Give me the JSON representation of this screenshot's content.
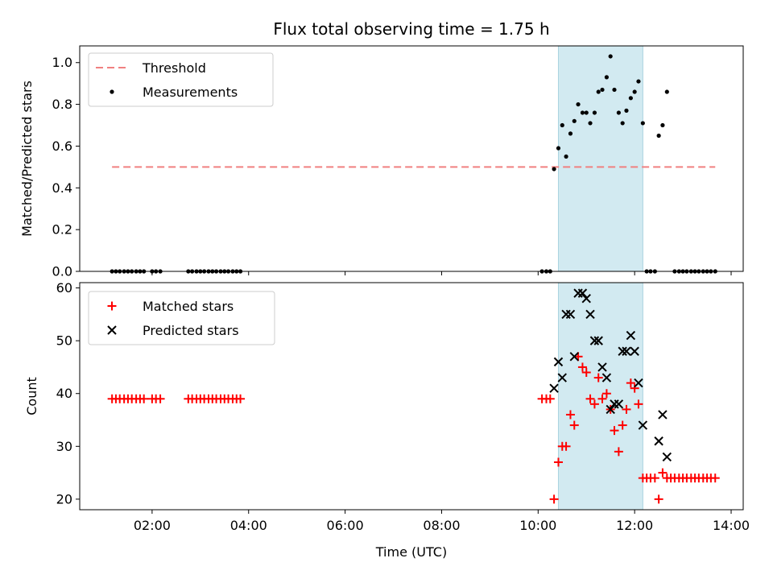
{
  "chart_data": {
    "title": "Flux total observing time = 1.75 h",
    "xlabel": "Time (UTC)",
    "x_unit": "hours UTC",
    "xlim": [
      0.5,
      14.25
    ],
    "xticks": [
      {
        "value": 2,
        "label": "02:00"
      },
      {
        "value": 4,
        "label": "04:00"
      },
      {
        "value": 6,
        "label": "06:00"
      },
      {
        "value": 8,
        "label": "08:00"
      },
      {
        "value": 10,
        "label": "10:00"
      },
      {
        "value": 12,
        "label": "12:00"
      },
      {
        "value": 14,
        "label": "14:00"
      }
    ],
    "highlight_span": {
      "x0": 10.42,
      "x1": 12.17,
      "color": "#add8e6"
    },
    "panels": [
      {
        "type": "scatter",
        "ylabel": "Matched/Predicted stars",
        "ylim": [
          0,
          1.08
        ],
        "yticks": [
          {
            "value": 0.0,
            "label": "0.0"
          },
          {
            "value": 0.2,
            "label": "0.2"
          },
          {
            "value": 0.4,
            "label": "0.4"
          },
          {
            "value": 0.6,
            "label": "0.6"
          },
          {
            "value": 0.8,
            "label": "0.8"
          },
          {
            "value": 1.0,
            "label": "1.0"
          }
        ],
        "threshold": {
          "name": "Threshold",
          "value": 0.5,
          "x0": 1.17,
          "x1": 13.67,
          "color": "#f08080"
        },
        "series": [
          {
            "name": "Measurements",
            "marker": "dot",
            "color": "#000000",
            "points": [
              [
                1.17,
                0
              ],
              [
                1.25,
                0
              ],
              [
                1.33,
                0
              ],
              [
                1.42,
                0
              ],
              [
                1.5,
                0
              ],
              [
                1.58,
                0
              ],
              [
                1.67,
                0
              ],
              [
                1.75,
                0
              ],
              [
                1.83,
                0
              ],
              [
                2.0,
                0
              ],
              [
                2.08,
                0
              ],
              [
                2.17,
                0
              ],
              [
                2.75,
                0
              ],
              [
                2.83,
                0
              ],
              [
                2.92,
                0
              ],
              [
                3.0,
                0
              ],
              [
                3.08,
                0
              ],
              [
                3.17,
                0
              ],
              [
                3.25,
                0
              ],
              [
                3.33,
                0
              ],
              [
                3.42,
                0
              ],
              [
                3.5,
                0
              ],
              [
                3.58,
                0
              ],
              [
                3.67,
                0
              ],
              [
                3.75,
                0
              ],
              [
                3.83,
                0
              ],
              [
                10.08,
                0
              ],
              [
                10.17,
                0
              ],
              [
                10.25,
                0
              ],
              [
                10.33,
                0.49
              ],
              [
                10.42,
                0.59
              ],
              [
                10.5,
                0.7
              ],
              [
                10.58,
                0.55
              ],
              [
                10.67,
                0.66
              ],
              [
                10.75,
                0.72
              ],
              [
                10.83,
                0.8
              ],
              [
                10.92,
                0.76
              ],
              [
                11.0,
                0.76
              ],
              [
                11.08,
                0.71
              ],
              [
                11.17,
                0.76
              ],
              [
                11.25,
                0.86
              ],
              [
                11.33,
                0.87
              ],
              [
                11.42,
                0.93
              ],
              [
                11.5,
                1.03
              ],
              [
                11.58,
                0.87
              ],
              [
                11.67,
                0.76
              ],
              [
                11.75,
                0.71
              ],
              [
                11.83,
                0.77
              ],
              [
                11.92,
                0.83
              ],
              [
                12.0,
                0.86
              ],
              [
                12.08,
                0.91
              ],
              [
                12.17,
                0.71
              ],
              [
                12.25,
                0
              ],
              [
                12.33,
                0
              ],
              [
                12.42,
                0
              ],
              [
                12.5,
                0.65
              ],
              [
                12.58,
                0.7
              ],
              [
                12.67,
                0.86
              ],
              [
                12.83,
                0
              ],
              [
                12.92,
                0
              ],
              [
                13.0,
                0
              ],
              [
                13.08,
                0
              ],
              [
                13.17,
                0
              ],
              [
                13.25,
                0
              ],
              [
                13.33,
                0
              ],
              [
                13.42,
                0
              ],
              [
                13.5,
                0
              ],
              [
                13.58,
                0
              ],
              [
                13.67,
                0
              ]
            ]
          }
        ],
        "legend": {
          "position": "upper-left",
          "entries": [
            "Threshold",
            "Measurements"
          ]
        }
      },
      {
        "type": "scatter",
        "ylabel": "Count",
        "ylim": [
          18,
          61
        ],
        "yticks": [
          {
            "value": 20,
            "label": "20"
          },
          {
            "value": 30,
            "label": "30"
          },
          {
            "value": 40,
            "label": "40"
          },
          {
            "value": 50,
            "label": "50"
          },
          {
            "value": 60,
            "label": "60"
          }
        ],
        "series": [
          {
            "name": "Matched stars",
            "marker": "plus",
            "color": "#ff0000",
            "points": [
              [
                1.17,
                39
              ],
              [
                1.25,
                39
              ],
              [
                1.33,
                39
              ],
              [
                1.42,
                39
              ],
              [
                1.5,
                39
              ],
              [
                1.58,
                39
              ],
              [
                1.67,
                39
              ],
              [
                1.75,
                39
              ],
              [
                1.83,
                39
              ],
              [
                2.0,
                39
              ],
              [
                2.08,
                39
              ],
              [
                2.17,
                39
              ],
              [
                2.75,
                39
              ],
              [
                2.83,
                39
              ],
              [
                2.92,
                39
              ],
              [
                3.0,
                39
              ],
              [
                3.08,
                39
              ],
              [
                3.17,
                39
              ],
              [
                3.25,
                39
              ],
              [
                3.33,
                39
              ],
              [
                3.42,
                39
              ],
              [
                3.5,
                39
              ],
              [
                3.58,
                39
              ],
              [
                3.67,
                39
              ],
              [
                3.75,
                39
              ],
              [
                3.83,
                39
              ],
              [
                10.08,
                39
              ],
              [
                10.17,
                39
              ],
              [
                10.25,
                39
              ],
              [
                10.33,
                20
              ],
              [
                10.42,
                27
              ],
              [
                10.5,
                30
              ],
              [
                10.58,
                30
              ],
              [
                10.67,
                36
              ],
              [
                10.75,
                34
              ],
              [
                10.83,
                47
              ],
              [
                10.92,
                45
              ],
              [
                11.0,
                44
              ],
              [
                11.08,
                39
              ],
              [
                11.17,
                38
              ],
              [
                11.25,
                43
              ],
              [
                11.33,
                39
              ],
              [
                11.42,
                40
              ],
              [
                11.5,
                37
              ],
              [
                11.58,
                33
              ],
              [
                11.67,
                29
              ],
              [
                11.75,
                34
              ],
              [
                11.83,
                37
              ],
              [
                11.92,
                42
              ],
              [
                12.0,
                41
              ],
              [
                12.08,
                38
              ],
              [
                12.17,
                24
              ],
              [
                12.25,
                24
              ],
              [
                12.33,
                24
              ],
              [
                12.42,
                24
              ],
              [
                12.5,
                20
              ],
              [
                12.58,
                25
              ],
              [
                12.67,
                24
              ],
              [
                12.75,
                24
              ],
              [
                12.83,
                24
              ],
              [
                12.92,
                24
              ],
              [
                13.0,
                24
              ],
              [
                13.08,
                24
              ],
              [
                13.17,
                24
              ],
              [
                13.25,
                24
              ],
              [
                13.33,
                24
              ],
              [
                13.42,
                24
              ],
              [
                13.5,
                24
              ],
              [
                13.58,
                24
              ],
              [
                13.67,
                24
              ]
            ]
          },
          {
            "name": "Predicted stars",
            "marker": "x",
            "color": "#000000",
            "points": [
              [
                10.33,
                41
              ],
              [
                10.42,
                46
              ],
              [
                10.5,
                43
              ],
              [
                10.58,
                55
              ],
              [
                10.67,
                55
              ],
              [
                10.75,
                47
              ],
              [
                10.83,
                59
              ],
              [
                10.92,
                59
              ],
              [
                11.0,
                58
              ],
              [
                11.08,
                55
              ],
              [
                11.17,
                50
              ],
              [
                11.25,
                50
              ],
              [
                11.33,
                45
              ],
              [
                11.42,
                43
              ],
              [
                11.5,
                37
              ],
              [
                11.58,
                38
              ],
              [
                11.67,
                38
              ],
              [
                11.75,
                48
              ],
              [
                11.83,
                48
              ],
              [
                11.92,
                51
              ],
              [
                12.0,
                48
              ],
              [
                12.08,
                42
              ],
              [
                12.17,
                34
              ],
              [
                12.5,
                31
              ],
              [
                12.58,
                36
              ],
              [
                12.67,
                28
              ]
            ]
          }
        ],
        "legend": {
          "position": "upper-left",
          "entries": [
            "Matched stars",
            "Predicted stars"
          ]
        }
      }
    ]
  }
}
